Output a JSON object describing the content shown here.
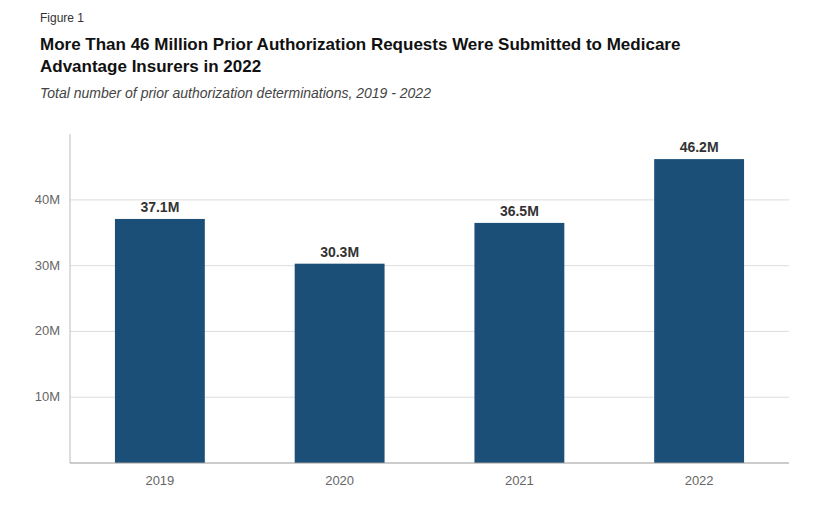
{
  "chart_data": {
    "type": "bar",
    "annotations": [
      "Figure 1"
    ],
    "title": "More Than 46 Million Prior Authorization Requests Were Submitted to Medicare\nAdvantage Insurers in 2022",
    "subtitle": "Total number of prior authorization determinations, 2019 - 2022",
    "categories": [
      "2019",
      "2020",
      "2021",
      "2022"
    ],
    "values": [
      37.1,
      30.3,
      36.5,
      46.2
    ],
    "value_labels": [
      "37.1M",
      "30.3M",
      "36.5M",
      "46.2M"
    ],
    "data_labels": true,
    "color": "#1c4f78",
    "ylim": [
      0,
      50
    ],
    "yticks": [
      {
        "value": 10,
        "label": "10M"
      },
      {
        "value": 20,
        "label": "20M"
      },
      {
        "value": 30,
        "label": "30M"
      },
      {
        "value": 40,
        "label": "40M"
      }
    ],
    "grid": true
  }
}
